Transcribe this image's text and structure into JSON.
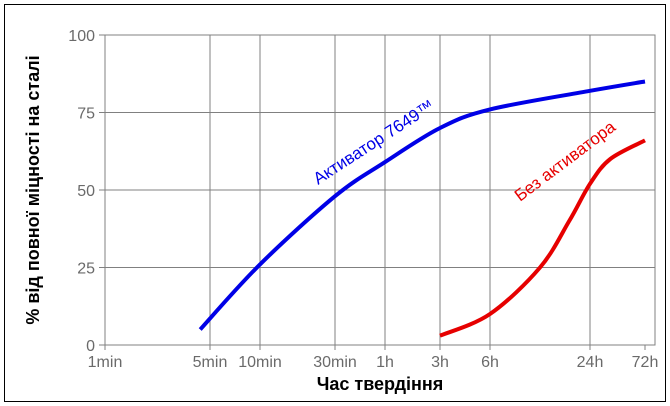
{
  "chart_data": {
    "type": "line",
    "xlabel": "Час твердіння",
    "ylabel": "% від повної міцності на сталі",
    "x_scale": "log",
    "x_ticks": [
      {
        "label": "1min",
        "minutes": 1
      },
      {
        "label": "5min",
        "minutes": 5
      },
      {
        "label": "10min",
        "minutes": 10
      },
      {
        "label": "30min",
        "minutes": 30
      },
      {
        "label": "1h",
        "minutes": 60
      },
      {
        "label": "3h",
        "minutes": 180
      },
      {
        "label": "6h",
        "minutes": 360
      },
      {
        "label": "24h",
        "minutes": 1440
      },
      {
        "label": "72h",
        "minutes": 4320
      }
    ],
    "y_ticks": [
      0,
      25,
      50,
      75,
      100
    ],
    "ylim": [
      0,
      100
    ],
    "grid": true,
    "series": [
      {
        "name": "Активатор 7649™",
        "color": "#0000e6",
        "points": [
          {
            "x": 4.3,
            "y": 5
          },
          {
            "x": 10,
            "y": 26
          },
          {
            "x": 30,
            "y": 48
          },
          {
            "x": 60,
            "y": 59
          },
          {
            "x": 180,
            "y": 70
          },
          {
            "x": 360,
            "y": 76
          },
          {
            "x": 1440,
            "y": 82
          },
          {
            "x": 4320,
            "y": 85
          }
        ]
      },
      {
        "name": "Без активатора",
        "color": "#e60000",
        "points": [
          {
            "x": 180,
            "y": 3
          },
          {
            "x": 360,
            "y": 10
          },
          {
            "x": 720,
            "y": 25
          },
          {
            "x": 1080,
            "y": 40
          },
          {
            "x": 1440,
            "y": 52
          },
          {
            "x": 2160,
            "y": 60
          },
          {
            "x": 4320,
            "y": 66
          }
        ]
      }
    ]
  }
}
